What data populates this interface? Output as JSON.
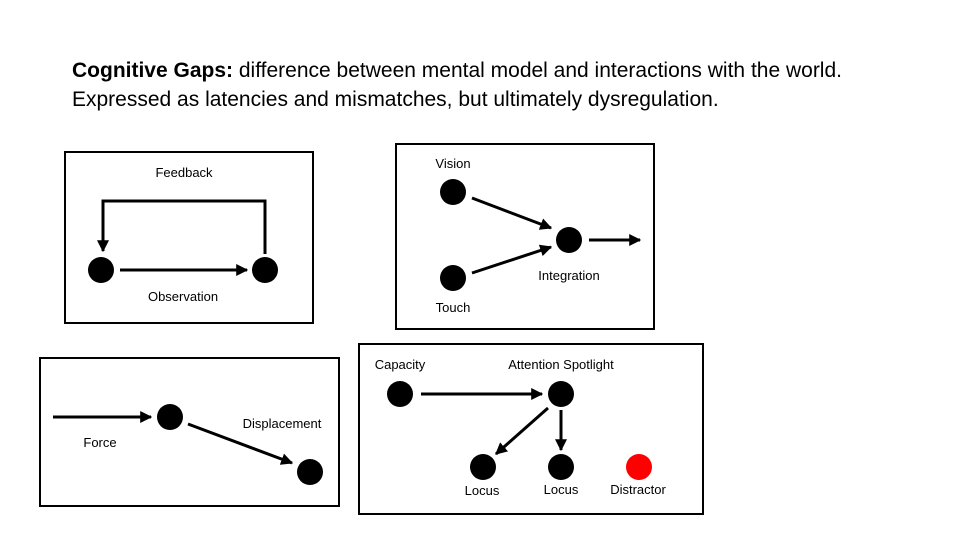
{
  "heading": {
    "bold": "Cognitive Gaps:",
    "rest": " difference between mental model and interactions with the world.",
    "line2": "Expressed as latencies and mismatches, but ultimately dysregulation."
  },
  "panel_feedback": {
    "top_label": "Feedback",
    "bottom_label": "Observation"
  },
  "panel_integration": {
    "vision": "Vision",
    "touch": "Touch",
    "integration": "Integration"
  },
  "panel_force": {
    "force": "Force",
    "displacement": "Displacement"
  },
  "panel_attention": {
    "capacity": "Capacity",
    "spotlight": "Attention Spotlight",
    "locus_1": "Locus",
    "locus_2": "Locus",
    "distractor": "Distractor"
  },
  "colors": {
    "node": "#000000",
    "distractor": "#ff0000"
  }
}
